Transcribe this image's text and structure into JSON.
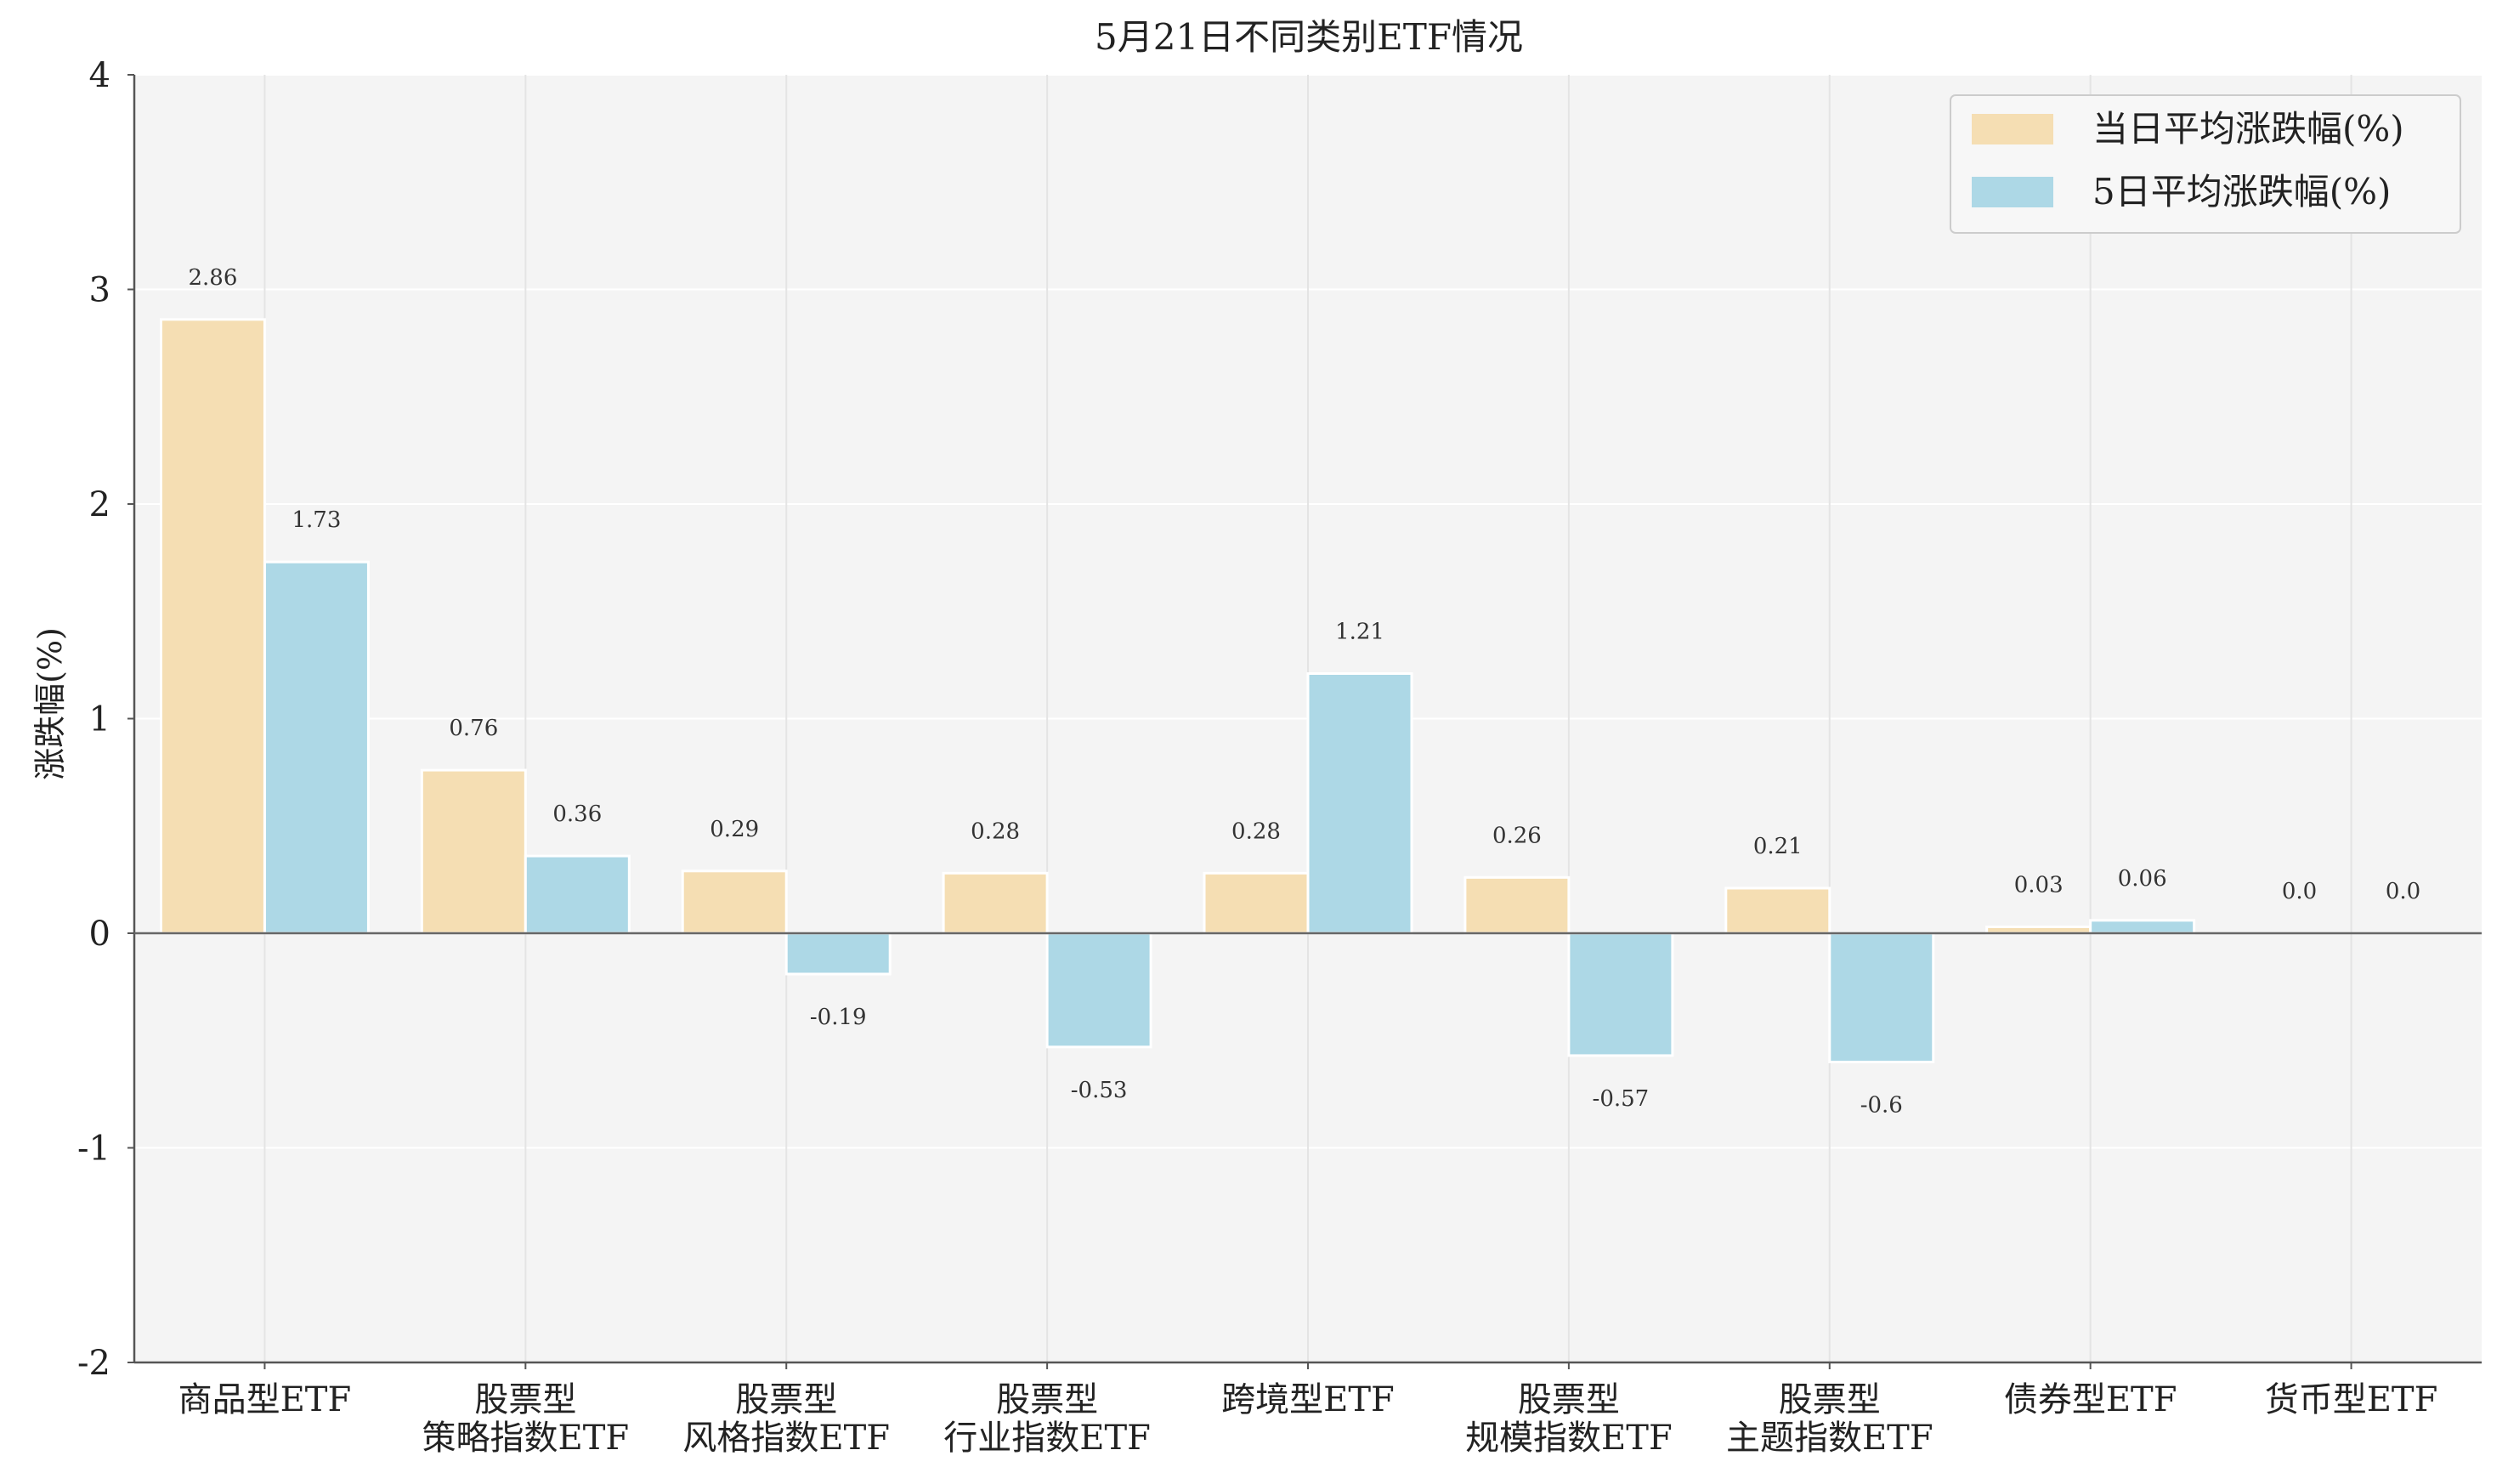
{
  "colors": {
    "background": "#f4f4f4",
    "grid": "#ffffff",
    "series1": "#f5deb3",
    "series2": "#add8e6",
    "axis": "#555555"
  },
  "chart_data": {
    "type": "bar",
    "title": "5月21日不同类别ETF情况",
    "ylabel": "涨跌幅(%)",
    "xlabel": "",
    "ylim": [
      -2,
      4
    ],
    "yticks": [
      "-2",
      "-1",
      "0",
      "1",
      "2",
      "3",
      "4"
    ],
    "grid": true,
    "legend_position": "top-right",
    "categories": [
      [
        "商品型ETF"
      ],
      [
        "股票型",
        "策略指数ETF"
      ],
      [
        "股票型",
        "风格指数ETF"
      ],
      [
        "股票型",
        "行业指数ETF"
      ],
      [
        "跨境型ETF"
      ],
      [
        "股票型",
        "规模指数ETF"
      ],
      [
        "股票型",
        "主题指数ETF"
      ],
      [
        "债券型ETF"
      ],
      [
        "货币型ETF"
      ]
    ],
    "series": [
      {
        "name": "当日平均涨跌幅(%)",
        "values": [
          2.86,
          0.76,
          0.29,
          0.28,
          0.28,
          0.26,
          0.21,
          0.03,
          0.0
        ],
        "labels": [
          "2.86",
          "0.76",
          "0.29",
          "0.28",
          "0.28",
          "0.26",
          "0.21",
          "0.03",
          "0.0"
        ]
      },
      {
        "name": "5日平均涨跌幅(%)",
        "values": [
          1.73,
          0.36,
          -0.19,
          -0.53,
          1.21,
          -0.57,
          -0.6,
          0.06,
          0.0
        ],
        "labels": [
          "1.73",
          "0.36",
          "-0.19",
          "-0.53",
          "1.21",
          "-0.57",
          "-0.6",
          "0.06",
          "0.0"
        ]
      }
    ]
  }
}
